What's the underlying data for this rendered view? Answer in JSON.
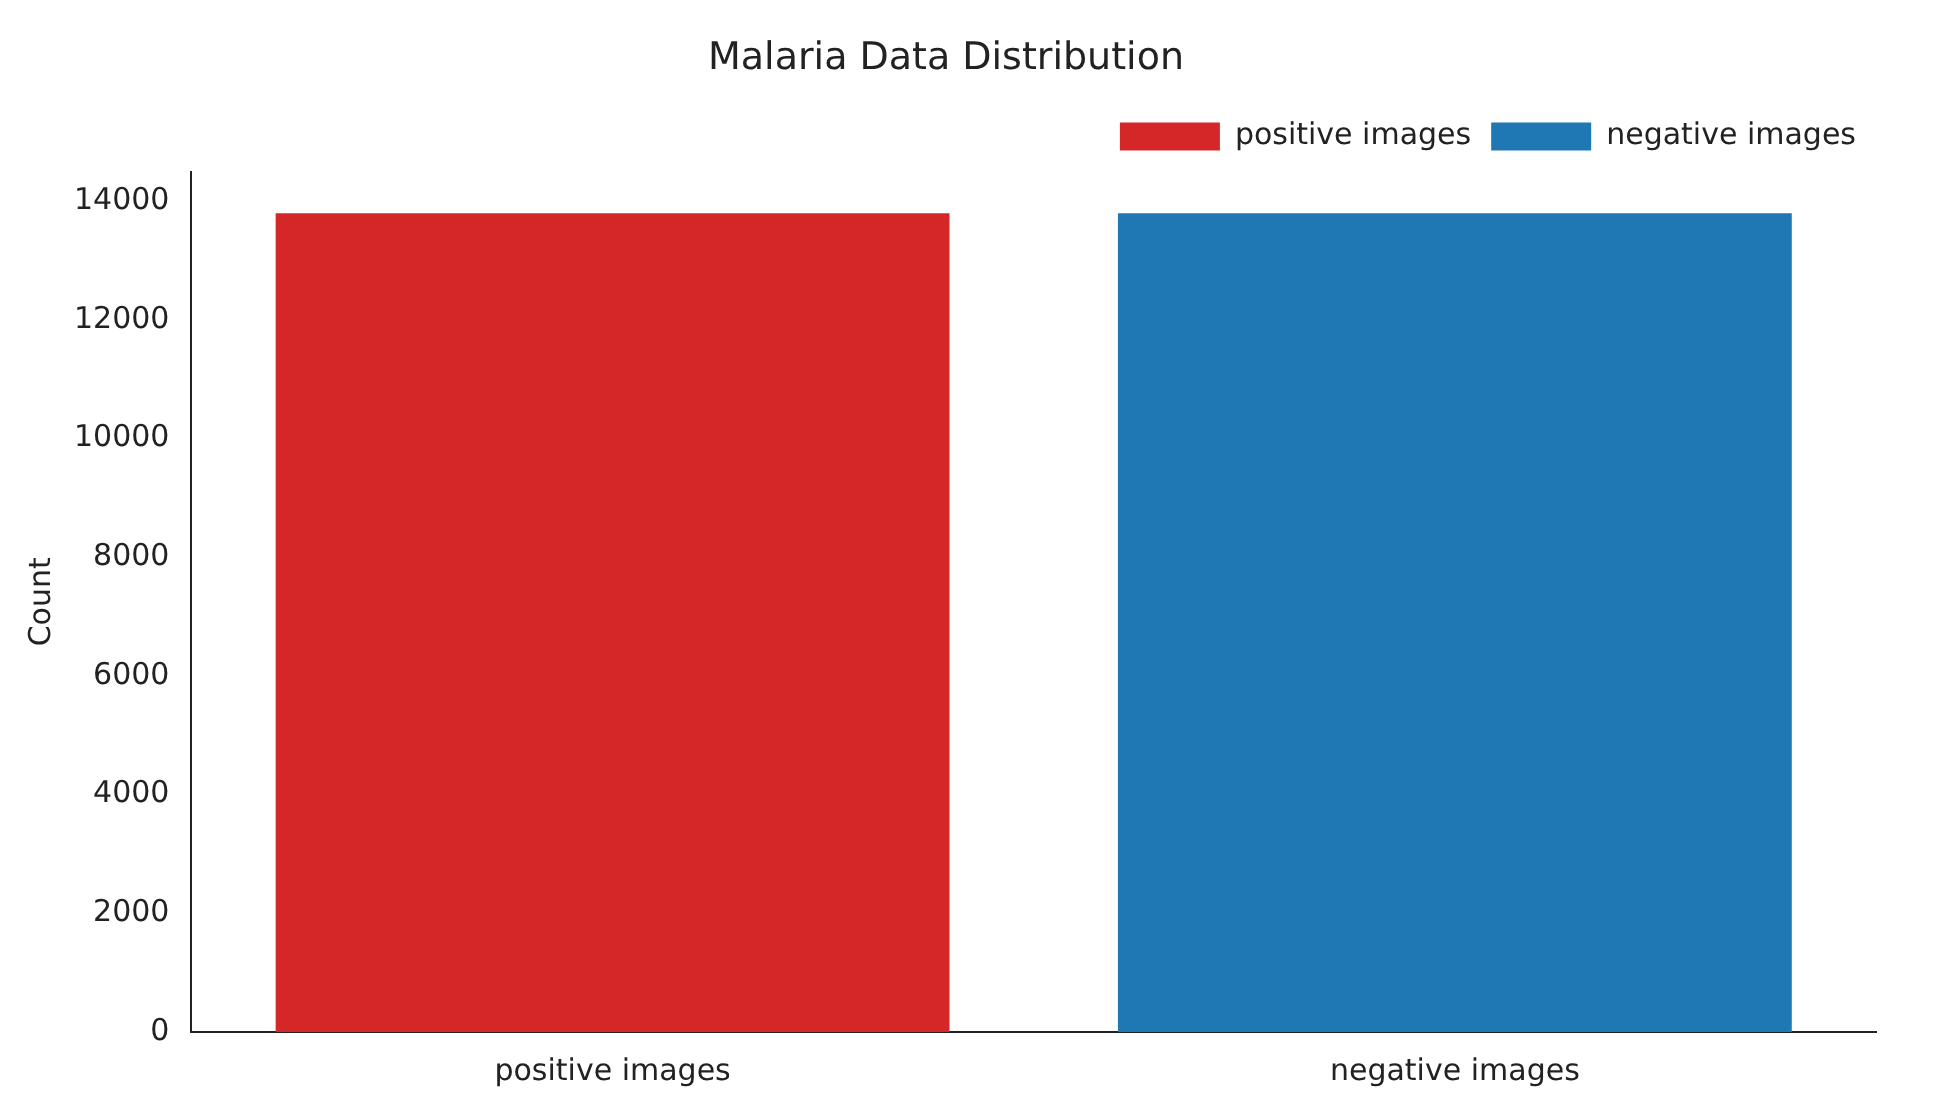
{
  "chart_data": {
    "type": "bar",
    "title": "Malaria Data Distribution",
    "ylabel": "Count",
    "categories": [
      "positive images",
      "negative images"
    ],
    "series": [
      {
        "name": "positive images",
        "color": "#d62728",
        "values": [
          13800,
          null
        ]
      },
      {
        "name": "negative images",
        "color": "#1f77b4",
        "values": [
          null,
          13800
        ]
      }
    ],
    "ylim": [
      0,
      14500
    ],
    "yticks": [
      0,
      2000,
      4000,
      6000,
      8000,
      10000,
      12000,
      14000
    ],
    "grid": false,
    "legend": "top right"
  }
}
